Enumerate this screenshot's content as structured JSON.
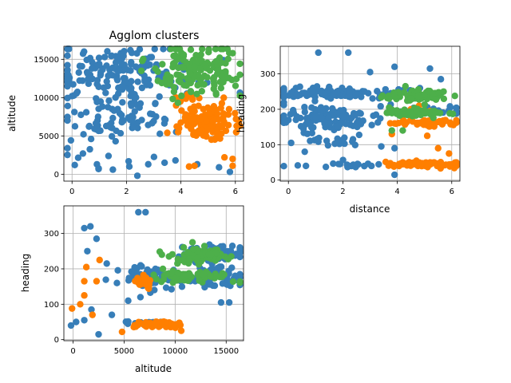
{
  "figure": {
    "title": "Agglom clusters"
  },
  "chart_data": [
    {
      "type": "scatter",
      "title": "Agglom clusters",
      "xlabel": "distance",
      "ylabel": "altitude",
      "xlim": [
        -0.3,
        6.3
      ],
      "ylim": [
        -900,
        16700
      ],
      "xticks": [
        0,
        2,
        4,
        6
      ],
      "yticks": [
        0,
        5000,
        10000,
        15000
      ],
      "grid": true,
      "series": [
        {
          "color": "#377eb8",
          "blobs": [
            {
              "cx": 1.4,
              "cy": 13300,
              "sx": 1.1,
              "sy": 1700,
              "n": 160
            },
            {
              "cx": 1.8,
              "cy": 6600,
              "sx": 1.2,
              "sy": 900,
              "n": 45
            },
            {
              "cx": 1.5,
              "cy": 8800,
              "sx": 1.0,
              "sy": 900,
              "n": 25
            },
            {
              "cx": 1.9,
              "cy": 2000,
              "sx": 1.3,
              "sy": 1100,
              "n": 12
            },
            {
              "cx": 4.8,
              "cy": 12500,
              "sx": 0.9,
              "sy": 1400,
              "n": 12
            }
          ],
          "points": [
            [
              0.1,
              1200
            ],
            [
              0.4,
              2700
            ],
            [
              1.5,
              600
            ],
            [
              2.4,
              -200
            ],
            [
              2.8,
              1300
            ],
            [
              3.8,
              1800
            ],
            [
              4.6,
              1300
            ],
            [
              5.4,
              900
            ],
            [
              5.8,
              300
            ],
            [
              3.4,
              1500
            ],
            [
              0.7,
              4600
            ],
            [
              1.6,
              4300
            ]
          ]
        },
        {
          "color": "#ff7f00",
          "blobs": [
            {
              "cx": 5.0,
              "cy": 6500,
              "sx": 0.55,
              "sy": 900,
              "n": 90
            },
            {
              "cx": 5.0,
              "cy": 8300,
              "sx": 0.6,
              "sy": 600,
              "n": 20
            },
            {
              "cx": 4.3,
              "cy": 9900,
              "sx": 0.3,
              "sy": 300,
              "n": 8
            }
          ],
          "points": [
            [
              4.5,
              1100
            ],
            [
              4.3,
              1000
            ],
            [
              5.6,
              2200
            ],
            [
              5.9,
              2000
            ],
            [
              5.9,
              1100
            ],
            [
              3.9,
              5500
            ],
            [
              3.5,
              5400
            ]
          ]
        },
        {
          "color": "#4daf4a",
          "blobs": [
            {
              "cx": 4.6,
              "cy": 13500,
              "sx": 0.8,
              "sy": 1600,
              "n": 150
            }
          ],
          "points": [
            [
              3.6,
              11800
            ],
            [
              3.3,
              11900
            ],
            [
              3.5,
              13000
            ],
            [
              5.9,
              15800
            ],
            [
              4.1,
              15600
            ]
          ]
        }
      ]
    },
    {
      "type": "scatter",
      "title": "",
      "xlabel": "distance",
      "ylabel": "heading",
      "xlim": [
        -0.3,
        6.3
      ],
      "ylim": [
        -3,
        378
      ],
      "xticks": [
        0,
        2,
        4,
        6
      ],
      "yticks": [
        0,
        100,
        200,
        300
      ],
      "grid": true,
      "series": [
        {
          "color": "#377eb8",
          "blobs": [
            {
              "cx": 1.6,
              "cy": 245,
              "sx": 1.1,
              "sy": 9,
              "n": 110
            },
            {
              "cx": 1.5,
              "cy": 175,
              "sx": 1.1,
              "sy": 18,
              "n": 120
            },
            {
              "cx": 1.6,
              "cy": 110,
              "sx": 0.9,
              "sy": 8,
              "n": 18
            },
            {
              "cx": 2.0,
              "cy": 45,
              "sx": 1.0,
              "sy": 4,
              "n": 22
            },
            {
              "cx": 5.0,
              "cy": 195,
              "sx": 0.8,
              "sy": 7,
              "n": 18
            }
          ],
          "points": [
            [
              1.1,
              360
            ],
            [
              2.2,
              360
            ],
            [
              3.9,
              320
            ],
            [
              5.2,
              315
            ],
            [
              5.6,
              285
            ],
            [
              3.0,
              305
            ],
            [
              0.1,
              105
            ],
            [
              0.6,
              80
            ],
            [
              3.9,
              15
            ],
            [
              3.9,
              90
            ]
          ]
        },
        {
          "color": "#ff7f00",
          "blobs": [
            {
              "cx": 5.0,
              "cy": 45,
              "sx": 0.6,
              "sy": 4,
              "n": 75
            },
            {
              "cx": 5.0,
              "cy": 162,
              "sx": 0.6,
              "sy": 5,
              "n": 60
            }
          ],
          "points": [
            [
              4.5,
              200
            ],
            [
              4.8,
              210
            ],
            [
              5.2,
              195
            ],
            [
              5.5,
              90
            ],
            [
              5.9,
              75
            ],
            [
              3.8,
              130
            ],
            [
              3.9,
              160
            ],
            [
              5.1,
              125
            ]
          ]
        },
        {
          "color": "#4daf4a",
          "blobs": [
            {
              "cx": 4.8,
              "cy": 238,
              "sx": 0.6,
              "sy": 8,
              "n": 90
            },
            {
              "cx": 4.8,
              "cy": 190,
              "sx": 0.6,
              "sy": 6,
              "n": 60
            }
          ],
          "points": [
            [
              3.7,
              230
            ],
            [
              3.7,
              205
            ],
            [
              3.8,
              140
            ],
            [
              4.2,
              140
            ],
            [
              4.3,
              265
            ],
            [
              5.7,
              250
            ]
          ]
        }
      ]
    },
    {
      "type": "scatter",
      "title": "",
      "xlabel": "altitude",
      "ylabel": "heading",
      "xlim": [
        -900,
        16700
      ],
      "ylim": [
        -3,
        378
      ],
      "xticks": [
        0,
        5000,
        10000,
        15000
      ],
      "yticks": [
        0,
        100,
        200,
        300
      ],
      "grid": true,
      "series": [
        {
          "color": "#377eb8",
          "blobs": [
            {
              "cx": 13800,
              "cy": 245,
              "sx": 1500,
              "sy": 10,
              "n": 90
            },
            {
              "cx": 7200,
              "cy": 175,
              "sx": 1400,
              "sy": 15,
              "n": 70
            },
            {
              "cx": 13800,
              "cy": 175,
              "sx": 1500,
              "sy": 15,
              "n": 70
            },
            {
              "cx": 7500,
              "cy": 45,
              "sx": 1000,
              "sy": 4,
              "n": 20
            }
          ],
          "points": [
            [
              6400,
              360
            ],
            [
              7100,
              360
            ],
            [
              1100,
              315
            ],
            [
              1700,
              320
            ],
            [
              2300,
              285
            ],
            [
              3300,
              215
            ],
            [
              1400,
              250
            ],
            [
              -200,
              40
            ],
            [
              300,
              50
            ],
            [
              1100,
              55
            ],
            [
              2500,
              15
            ],
            [
              3800,
              70
            ],
            [
              1800,
              85
            ],
            [
              14500,
              105
            ],
            [
              15300,
              105
            ],
            [
              4300,
              160
            ],
            [
              5400,
              110
            ],
            [
              6600,
              120
            ]
          ]
        },
        {
          "color": "#ff7f00",
          "blobs": [
            {
              "cx": 8200,
              "cy": 42,
              "sx": 1200,
              "sy": 5,
              "n": 55
            },
            {
              "cx": 6800,
              "cy": 165,
              "sx": 500,
              "sy": 12,
              "n": 25
            }
          ],
          "points": [
            [
              -100,
              88
            ],
            [
              1100,
              165
            ],
            [
              1300,
              205
            ],
            [
              2300,
              165
            ],
            [
              4800,
              22
            ],
            [
              10600,
              25
            ],
            [
              1100,
              125
            ],
            [
              700,
              100
            ],
            [
              1900,
              70
            ],
            [
              2600,
              225
            ]
          ]
        },
        {
          "color": "#4daf4a",
          "blobs": [
            {
              "cx": 12600,
              "cy": 238,
              "sx": 1400,
              "sy": 10,
              "n": 85
            },
            {
              "cx": 11600,
              "cy": 178,
              "sx": 1700,
              "sy": 8,
              "n": 60
            }
          ],
          "points": [
            [
              9400,
              235
            ],
            [
              8700,
              240
            ],
            [
              8800,
              200
            ],
            [
              11700,
              275
            ],
            [
              15500,
              235
            ]
          ]
        }
      ]
    }
  ]
}
